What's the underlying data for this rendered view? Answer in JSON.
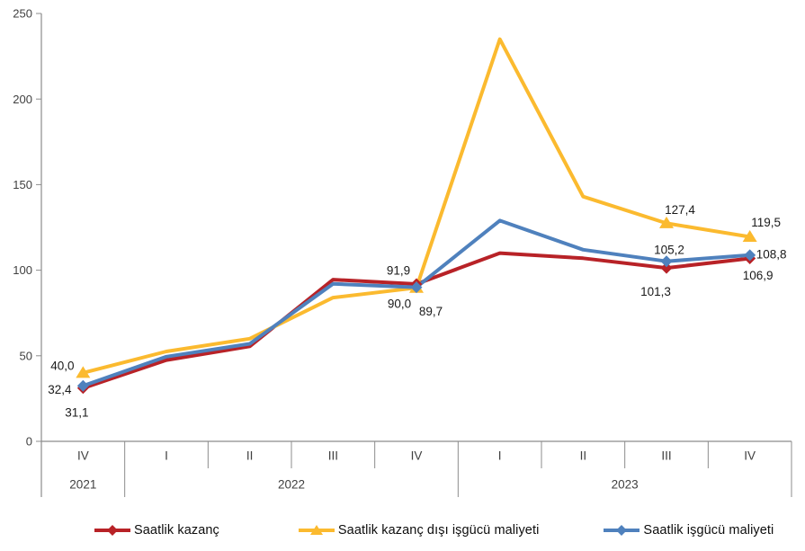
{
  "chart_data": {
    "type": "line",
    "categories": [
      "IV",
      "I",
      "II",
      "III",
      "IV",
      "I",
      "II",
      "III",
      "IV"
    ],
    "year_groups": [
      {
        "label": "2021",
        "start": 0,
        "span": 1
      },
      {
        "label": "2022",
        "start": 1,
        "span": 4
      },
      {
        "label": "2023",
        "start": 5,
        "span": 4
      }
    ],
    "ylim": [
      0,
      250
    ],
    "yticks": [
      "0",
      "50",
      "100",
      "150",
      "200",
      "250"
    ],
    "grid": "off",
    "legend_position": "bottom",
    "axis_color": "#8c8c8c",
    "axis_text_color": "#404040",
    "data_label_color": "#1a1a1a",
    "series": [
      {
        "name": "Saatlik kazanç",
        "color": "#b82227",
        "marker": "diamond",
        "values": [
          31.1,
          47.5,
          55.5,
          94.5,
          91.9,
          110.0,
          107.0,
          101.3,
          106.9
        ],
        "marker_indices": [
          0,
          4,
          7,
          8
        ],
        "labels": [
          {
            "index": 0,
            "text": "31,1",
            "dx": -7,
            "dy": 27
          },
          {
            "index": 4,
            "text": "91,9",
            "dx": -20,
            "dy": -15
          },
          {
            "index": 7,
            "text": "101,3",
            "dx": -12,
            "dy": 26
          },
          {
            "index": 8,
            "text": "106,9",
            "dx": 9,
            "dy": 19
          }
        ]
      },
      {
        "name": "Saatlik kazanç dışı işgücü maliyeti",
        "color": "#fbba2f",
        "marker": "triangle",
        "values": [
          40.0,
          52.5,
          60.0,
          84.0,
          89.7,
          235.0,
          143.0,
          127.4,
          119.5
        ],
        "marker_indices": [
          0,
          4,
          7,
          8
        ],
        "labels": [
          {
            "index": 0,
            "text": "40,0",
            "dx": -23,
            "dy": -8
          },
          {
            "index": 4,
            "text": "89,7",
            "dx": 16,
            "dy": 26
          },
          {
            "index": 7,
            "text": "127,4",
            "dx": 15,
            "dy": -15
          },
          {
            "index": 8,
            "text": "119,5",
            "dx": 18,
            "dy": -16
          }
        ]
      },
      {
        "name": "Saatlik işgücü maliyeti",
        "color": "#4f81bd",
        "marker": "diamond",
        "values": [
          32.4,
          49.5,
          57.0,
          92.0,
          90.0,
          129.0,
          112.0,
          105.2,
          108.8
        ],
        "marker_indices": [
          0,
          4,
          7,
          8
        ],
        "labels": [
          {
            "index": 0,
            "text": "32,4",
            "dx": -26,
            "dy": 4
          },
          {
            "index": 4,
            "text": "90,0",
            "dx": -19,
            "dy": 18
          },
          {
            "index": 7,
            "text": "105,2",
            "dx": 3,
            "dy": -13
          },
          {
            "index": 8,
            "text": "108,8",
            "dx": 24,
            "dy": -1
          }
        ]
      }
    ]
  }
}
